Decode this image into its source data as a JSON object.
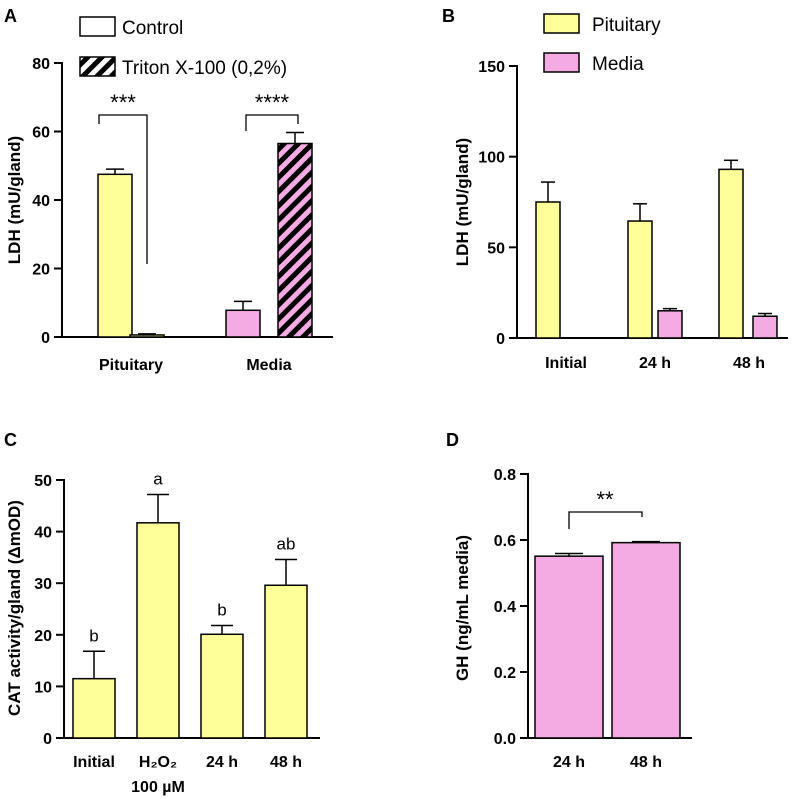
{
  "colors": {
    "pituitary": "#ffff99",
    "media": "#f4aae2",
    "axis": "#000000"
  },
  "chart_data": [
    {
      "panel": "A",
      "type": "bar",
      "ylabel": "LDH (mU/gland)",
      "ylim": [
        0,
        80
      ],
      "yticks": [
        0,
        20,
        40,
        60,
        80
      ],
      "categories": [
        "Pituitary",
        "Media"
      ],
      "legend": [
        {
          "label": "Control",
          "pattern": "open"
        },
        {
          "label": "Triton X-100 (0,2%)",
          "pattern": "hatched"
        }
      ],
      "bars": [
        {
          "category": "Pituitary",
          "series": "Control",
          "value": 47.5,
          "error": 1.5,
          "color": "#ffff99",
          "pattern": "solid"
        },
        {
          "category": "Pituitary",
          "series": "Triton X-100 (0,2%)",
          "value": 0.6,
          "error": 0.3,
          "color": "#ffff99",
          "pattern": "solid"
        },
        {
          "category": "Media",
          "series": "Control",
          "value": 7.8,
          "error": 2.6,
          "color": "#f4aae2",
          "pattern": "solid"
        },
        {
          "category": "Media",
          "series": "Triton X-100 (0,2%)",
          "value": 56.5,
          "error": 3.2,
          "color": "#f4aae2",
          "pattern": "hatched"
        }
      ],
      "significance": [
        {
          "label": "***",
          "category": "Pituitary"
        },
        {
          "label": "****",
          "category": "Media"
        }
      ]
    },
    {
      "panel": "B",
      "type": "bar",
      "ylabel": "LDH (mU/gland)",
      "ylim": [
        0,
        150
      ],
      "yticks": [
        0,
        50,
        100,
        150
      ],
      "categories": [
        "Initial",
        "24 h",
        "48 h"
      ],
      "series": [
        {
          "name": "Pituitary",
          "color": "#ffff99",
          "values": [
            75,
            64.5,
            93
          ],
          "errors": [
            11,
            9.5,
            5
          ]
        },
        {
          "name": "Media",
          "color": "#f4aae2",
          "values": [
            null,
            15,
            12
          ],
          "errors": [
            null,
            1.2,
            1.5
          ]
        }
      ]
    },
    {
      "panel": "C",
      "type": "bar",
      "ylabel": "CAT activity/gland (ΔmOD)",
      "ylim": [
        0,
        50
      ],
      "yticks": [
        0,
        10,
        20,
        30,
        40,
        50
      ],
      "categories": [
        "Initial",
        "H2O2 100 µM",
        "24 h",
        "48 h"
      ],
      "category_display": [
        {
          "main": "Initial",
          "sub": ""
        },
        {
          "main": "H₂O₂",
          "sub": "100 µM"
        },
        {
          "main": "24 h",
          "sub": ""
        },
        {
          "main": "48 h",
          "sub": ""
        }
      ],
      "series": [
        {
          "name": "CAT activity",
          "color": "#ffff99",
          "values": [
            11.5,
            41.7,
            20.1,
            29.6
          ],
          "errors": [
            5.3,
            5.5,
            1.7,
            5.0
          ]
        }
      ],
      "letters": [
        "b",
        "a",
        "b",
        "ab"
      ]
    },
    {
      "panel": "D",
      "type": "bar",
      "ylabel": "GH (ng/mL media)",
      "ylim": [
        0,
        0.8
      ],
      "yticks": [
        "0.0",
        "0.2",
        "0.4",
        "0.6",
        "0.8"
      ],
      "categories": [
        "24 h",
        "48 h"
      ],
      "series": [
        {
          "name": "GH",
          "color": "#f4aae2",
          "values": [
            0.551,
            0.592
          ],
          "errors": [
            0.008,
            0.003
          ]
        }
      ],
      "significance": [
        {
          "label": "**"
        }
      ]
    }
  ]
}
